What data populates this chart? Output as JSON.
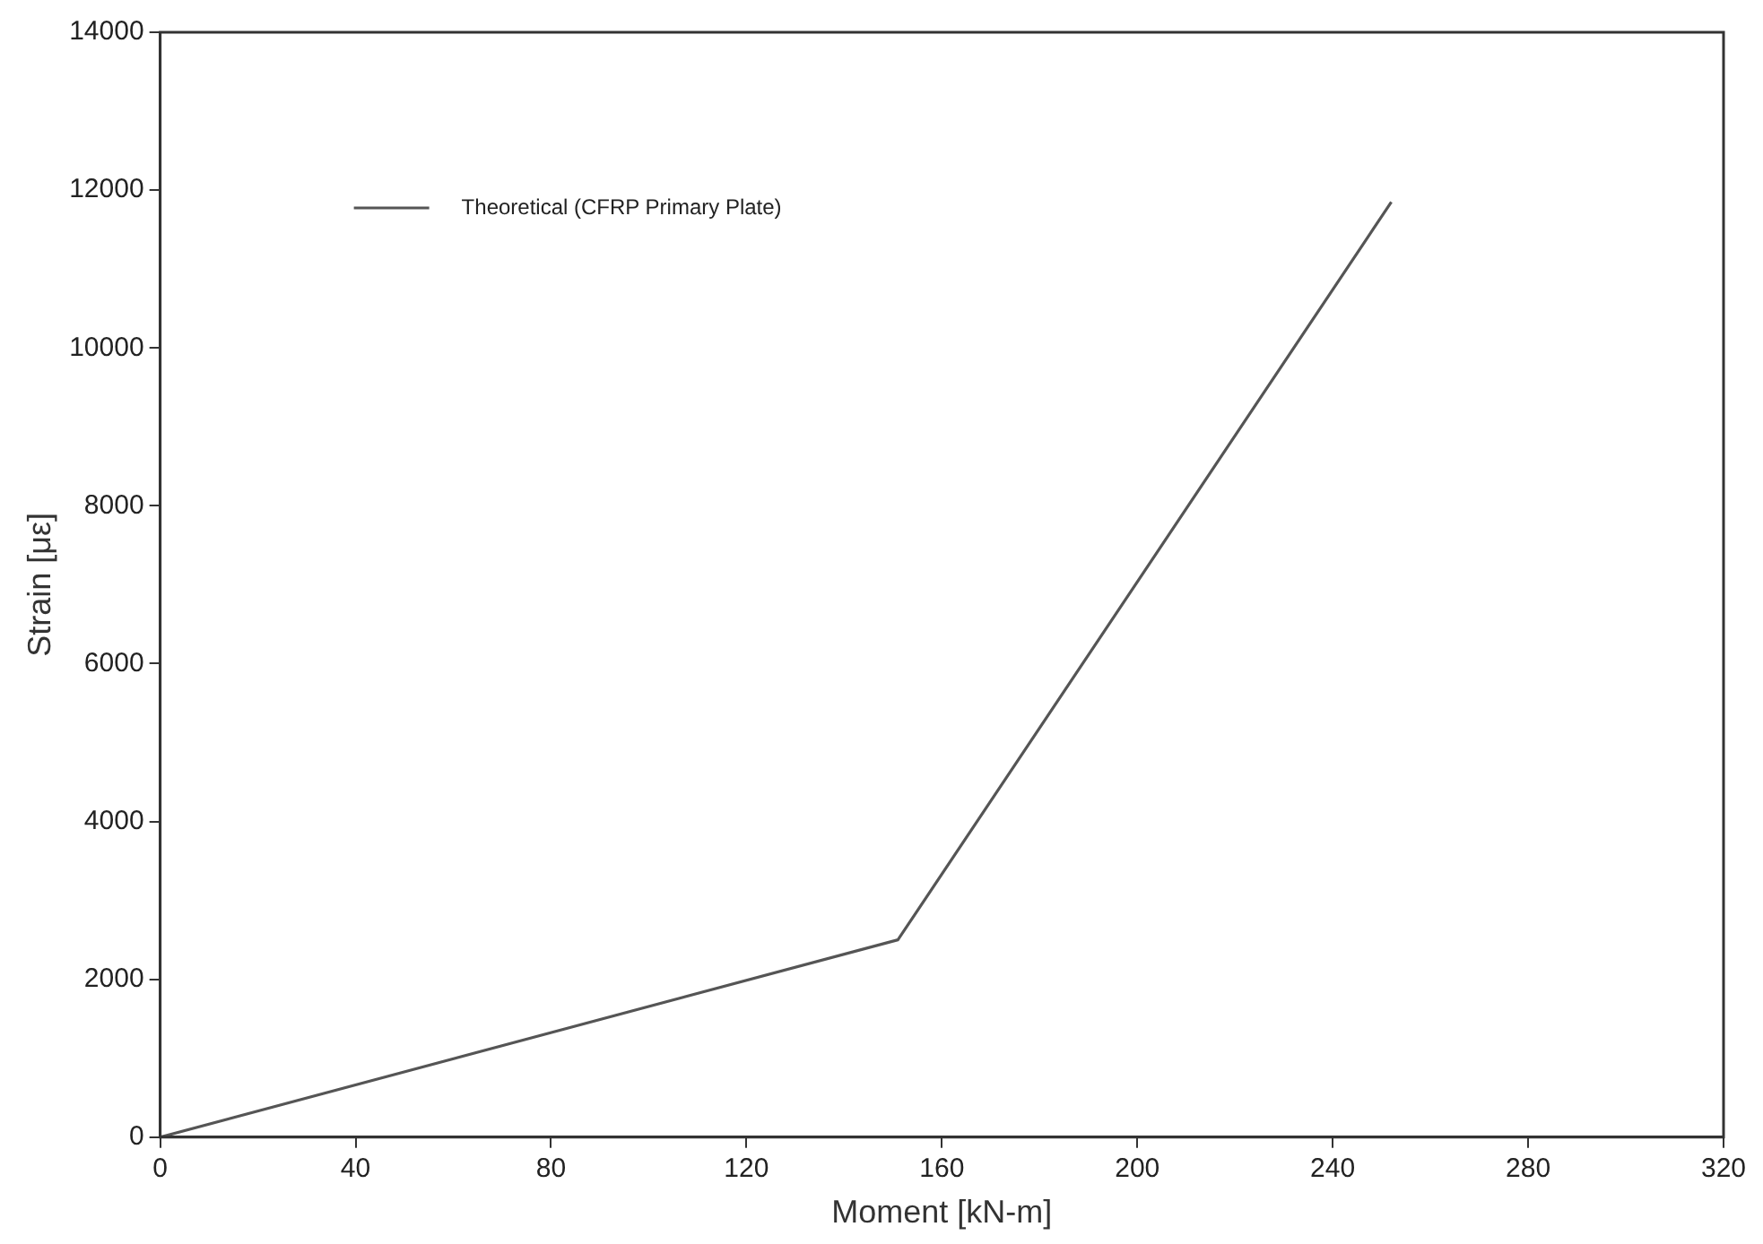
{
  "chart_data": {
    "type": "line",
    "xlabel": "Moment [kN-m]",
    "ylabel": "Strain [με]",
    "xlim": [
      0,
      320
    ],
    "xticks": [
      0,
      40,
      80,
      120,
      160,
      200,
      240,
      280,
      320
    ],
    "ylim": [
      0,
      14000
    ],
    "yticks": [
      0,
      2000,
      4000,
      6000,
      8000,
      10000,
      12000,
      14000
    ],
    "grid": false,
    "legend": "top left",
    "marker": "none",
    "line_style": "solid",
    "series": [
      {
        "name": "Theoretical (CFRP Primary Plate)",
        "color": "#555555",
        "x": [
          0,
          151,
          252
        ],
        "values": [
          0,
          2500,
          11850
        ]
      }
    ]
  }
}
